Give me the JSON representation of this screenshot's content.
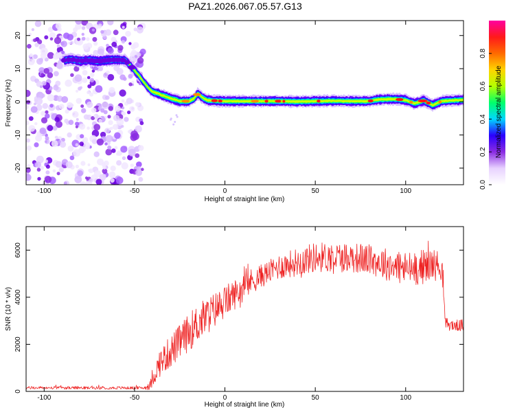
{
  "title": "PAZ1.2026.067.05.57.G13",
  "chart_data": [
    {
      "type": "heatmap",
      "name": "spectrogram",
      "xlabel": "Height of straight line (km)",
      "ylabel": "Frequency (Hz)",
      "xlim": [
        -110,
        132
      ],
      "ylim": [
        -25,
        24.5
      ],
      "xticks": [
        -100,
        -50,
        0,
        50,
        100
      ],
      "yticks": [
        -20,
        -10,
        0,
        10,
        20
      ],
      "noise_region_x": [
        -110,
        -45
      ],
      "ridge": {
        "x": [
          -89,
          -85,
          -80,
          -75,
          -70,
          -65,
          -60,
          -55,
          -50,
          -47,
          -45,
          -42,
          -40,
          -37,
          -35,
          -32,
          -30,
          -27,
          -25,
          -20,
          -17,
          -15,
          -13,
          -10,
          -5,
          0,
          10,
          20,
          30,
          40,
          50,
          60,
          70,
          80,
          85,
          90,
          95,
          100,
          105,
          110,
          115,
          120,
          125,
          132
        ],
        "freq_hz": [
          12.5,
          12.8,
          12.3,
          12.6,
          12.2,
          12.6,
          12.7,
          12.5,
          9.5,
          7.5,
          6,
          4,
          3,
          2.5,
          2,
          1.5,
          1,
          0.6,
          0.2,
          0.2,
          1,
          2.5,
          1.5,
          0.5,
          0.3,
          0.2,
          0.2,
          0.2,
          0.2,
          0.1,
          0.2,
          0.3,
          0.2,
          0.2,
          0.7,
          0.8,
          0.8,
          0.5,
          -0.5,
          0.4,
          -1,
          0.2,
          0.4,
          0.6
        ]
      },
      "colorbar": {
        "label": "Normalized spectral amplitude",
        "range": [
          0,
          1
        ],
        "ticks": [
          0.0,
          0.2,
          0.4,
          0.6,
          0.8
        ],
        "tick_labels": [
          "0.0",
          "0.2",
          "0.4",
          "0.6",
          "0.8"
        ],
        "colormap": [
          "#ffffff",
          "#e8d2ff",
          "#8a2be2",
          "#2a00ff",
          "#00d7ff",
          "#00ff6a",
          "#b4ff00",
          "#ffd400",
          "#ff6a00",
          "#ff1a1a",
          "#ff00a0"
        ]
      }
    },
    {
      "type": "line",
      "name": "snr",
      "xlabel": "Height of straight line (km)",
      "ylabel": "SNR (10 * v/v)",
      "xlim": [
        -110,
        132
      ],
      "ylim": [
        0,
        7000
      ],
      "xticks": [
        -100,
        -50,
        0,
        50,
        100
      ],
      "yticks": [
        0,
        2000,
        4000,
        6000
      ],
      "line_color": "#ee2222",
      "envelope": {
        "x": [
          -110,
          -45,
          -42,
          -40,
          -38,
          -35,
          -30,
          -25,
          -20,
          -15,
          -10,
          -5,
          0,
          5,
          10,
          15,
          20,
          25,
          30,
          40,
          50,
          60,
          70,
          80,
          90,
          100,
          110,
          115,
          120,
          121,
          122,
          125,
          132
        ],
        "mean": [
          150,
          150,
          200,
          450,
          900,
          1300,
          1700,
          2100,
          2500,
          2900,
          3200,
          3500,
          3800,
          4100,
          4400,
          4700,
          4900,
          5100,
          5300,
          5500,
          5700,
          5700,
          5700,
          5600,
          5400,
          5200,
          5300,
          5400,
          5300,
          4000,
          2900,
          2800,
          2800
        ],
        "spread": [
          60,
          60,
          150,
          300,
          450,
          600,
          700,
          750,
          800,
          850,
          800,
          750,
          700,
          650,
          600,
          550,
          500,
          500,
          550,
          600,
          650,
          650,
          650,
          650,
          700,
          750,
          750,
          700,
          600,
          300,
          250,
          250,
          250
        ]
      }
    }
  ],
  "colors": {
    "axis": "#000000",
    "background": "#ffffff",
    "snr_line": "#ee2222",
    "noise_dots": "#8a2be2"
  }
}
